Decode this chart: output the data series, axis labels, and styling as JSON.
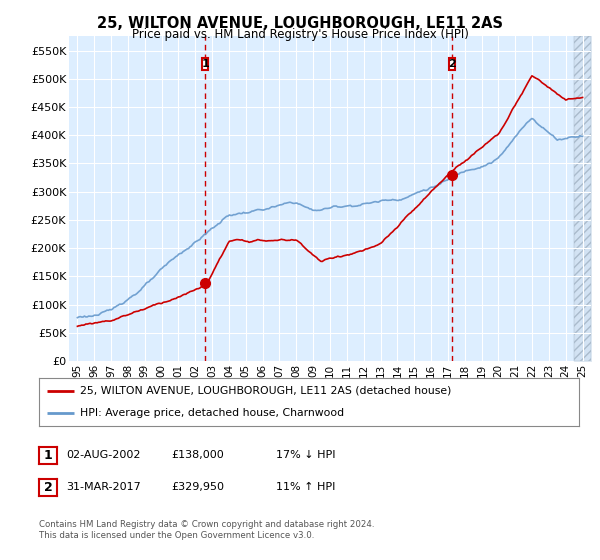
{
  "title": "25, WILTON AVENUE, LOUGHBOROUGH, LE11 2AS",
  "subtitle": "Price paid vs. HM Land Registry's House Price Index (HPI)",
  "ylim": [
    0,
    575000
  ],
  "yticks": [
    0,
    50000,
    100000,
    150000,
    200000,
    250000,
    300000,
    350000,
    400000,
    450000,
    500000,
    550000
  ],
  "ytick_labels": [
    "£0",
    "£50K",
    "£100K",
    "£150K",
    "£200K",
    "£250K",
    "£300K",
    "£350K",
    "£400K",
    "£450K",
    "£500K",
    "£550K"
  ],
  "red_line_color": "#cc0000",
  "blue_line_color": "#6699cc",
  "marker1_year": 2002.6,
  "marker1_value": 138000,
  "marker1_label": "1",
  "marker2_year": 2017.25,
  "marker2_value": 329950,
  "marker2_label": "2",
  "vline_color": "#cc0000",
  "legend_red_label": "25, WILTON AVENUE, LOUGHBOROUGH, LE11 2AS (detached house)",
  "legend_blue_label": "HPI: Average price, detached house, Charnwood",
  "table_rows": [
    {
      "num": "1",
      "date": "02-AUG-2002",
      "price": "£138,000",
      "hpi": "17% ↓ HPI"
    },
    {
      "num": "2",
      "date": "31-MAR-2017",
      "price": "£329,950",
      "hpi": "11% ↑ HPI"
    }
  ],
  "footnote": "Contains HM Land Registry data © Crown copyright and database right 2024.\nThis data is licensed under the Open Government Licence v3.0.",
  "bg_color": "#ffffff",
  "plot_bg_color": "#ddeeff",
  "grid_color": "#ffffff",
  "hatch_color": "#c8d8e8"
}
